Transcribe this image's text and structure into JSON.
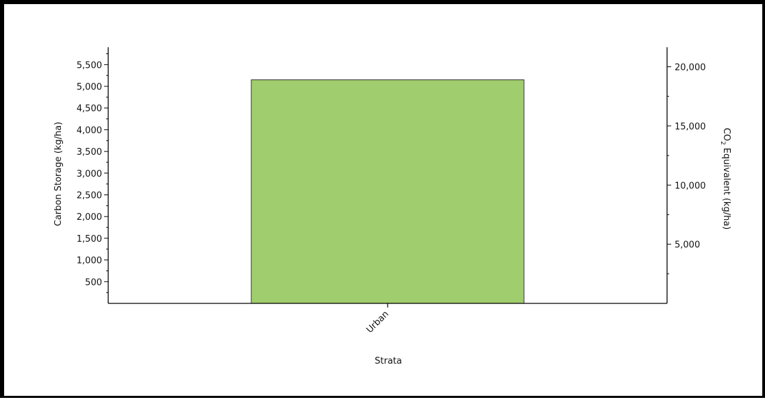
{
  "chart_data": {
    "type": "bar",
    "categories": [
      "Urban"
    ],
    "series": [
      {
        "values": [
          5150
        ]
      }
    ],
    "xlabel": "Strata",
    "ylabel": "Carbon Storage (kg/ha)",
    "y2label_parts": {
      "before": "CO",
      "sub": "2",
      "after": " Equivalent (kg/ha)"
    },
    "ylim": [
      0,
      5900
    ],
    "y_ticks": [
      500,
      1000,
      1500,
      2000,
      2500,
      3000,
      3500,
      4000,
      4500,
      5000,
      5500
    ],
    "y_tick_labels": [
      "500",
      "1,000",
      "1,500",
      "2,000",
      "2,500",
      "3,000",
      "3,500",
      "4,000",
      "4,500",
      "5,000",
      "5,500"
    ],
    "y2lim": [
      0,
      21650
    ],
    "y2_ticks": [
      5000,
      10000,
      15000,
      20000
    ],
    "y2_tick_labels": [
      "5,000",
      "10,000",
      "15,000",
      "20,000"
    ],
    "bar_color": "#a0cd6e",
    "bar_edge_color": "#333333",
    "grid": false,
    "legend": "none"
  }
}
